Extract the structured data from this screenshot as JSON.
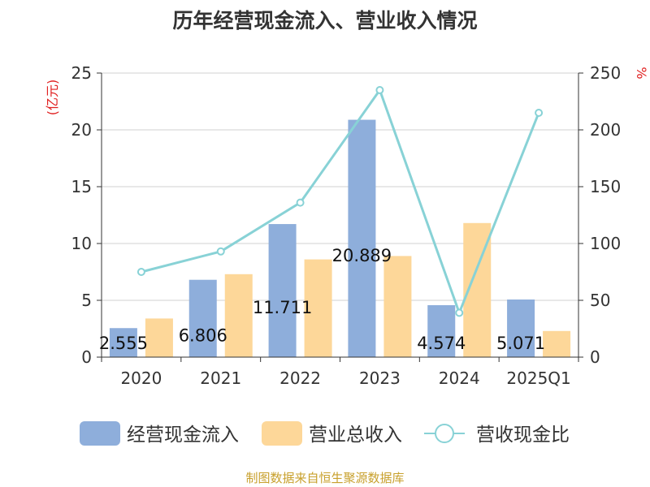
{
  "chart_data": {
    "type": "bar",
    "title": "历年经营现金流入、营业收入情况",
    "left_axis_unit": "(亿元)",
    "right_axis_unit": "%",
    "categories": [
      "2020",
      "2021",
      "2022",
      "2023",
      "2024",
      "2025Q1"
    ],
    "ylim_left": [
      0,
      25
    ],
    "yticks_left": [
      "0",
      "5",
      "10",
      "15",
      "20",
      "25"
    ],
    "ylim_right": [
      0,
      250
    ],
    "yticks_right": [
      "0",
      "50",
      "100",
      "150",
      "200",
      "250"
    ],
    "grid": true,
    "legend_position": "bottom",
    "series": [
      {
        "name": "经营现金流入",
        "kind": "bar",
        "axis": "left",
        "color": "#8eaedb",
        "values": [
          2.555,
          6.806,
          11.711,
          20.889,
          4.574,
          5.071
        ],
        "labels": [
          "2.555",
          "6.806",
          "11.711",
          "20.889",
          "4.574",
          "5.071"
        ]
      },
      {
        "name": "营业总收入",
        "kind": "bar",
        "axis": "left",
        "color": "#fdd799",
        "values": [
          3.4,
          7.3,
          8.6,
          8.9,
          11.8,
          2.3
        ]
      },
      {
        "name": "营收现金比",
        "kind": "line",
        "axis": "right",
        "color": "#88d2d6",
        "values": [
          75,
          93,
          136,
          235,
          39,
          215
        ]
      }
    ]
  },
  "footer": {
    "source": "制图数据来自恒生聚源数据库"
  }
}
